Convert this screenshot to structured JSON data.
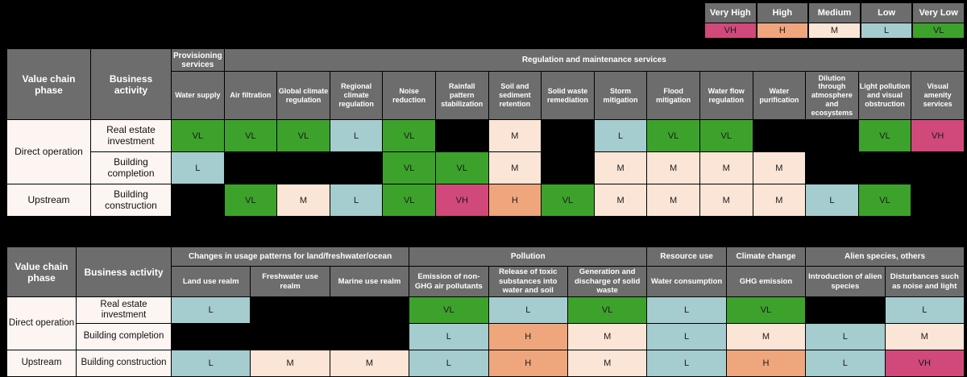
{
  "colors": {
    "VH": "#d1497a",
    "H": "#efa67d",
    "M": "#fbe5d6",
    "L": "#a5cccf",
    "VL": "#3da22c",
    "header_bg": "#6d6d6d",
    "row_label_bg": "#fdf5f2",
    "page_bg": "#000000",
    "header_text": "#ffffff",
    "cell_text": "#1a1a1a"
  },
  "legend": {
    "items": [
      {
        "label": "Very High",
        "code": "VH"
      },
      {
        "label": "High",
        "code": "H"
      },
      {
        "label": "Medium",
        "code": "M"
      },
      {
        "label": "Low",
        "code": "L"
      },
      {
        "label": "Very Low",
        "code": "VL"
      }
    ]
  },
  "chart_data": [
    {
      "type": "heatmap",
      "scale": [
        "VL",
        "L",
        "M",
        "H",
        "VH"
      ],
      "corner_headers": [
        "Value chain phase",
        "Business activity"
      ],
      "column_groups": [
        {
          "label": "Provisioning services",
          "span": 1
        },
        {
          "label": "Regulation and maintenance services",
          "span": 14
        }
      ],
      "columns": [
        "Water supply",
        "Air filtration",
        "Global climate regulation",
        "Regional climate regulation",
        "Noise reduction",
        "Rainfall pattern stabilization",
        "Soil and sediment retention",
        "Solid waste remediation",
        "Storm mitigation",
        "Flood mitigation",
        "Water flow regulation",
        "Water purification",
        "Dilution through atmosphere and ecosystems",
        "Light pollution and visual obstruction",
        "Visual amenity services"
      ],
      "rows": [
        {
          "phase": "Direct operation",
          "phase_span": 2,
          "activity": "Real estate investment",
          "values": [
            "VL",
            "VL",
            "VL",
            "L",
            "VL",
            "",
            "M",
            "",
            "L",
            "VL",
            "VL",
            "",
            "",
            "VL",
            "VH"
          ]
        },
        {
          "phase": "",
          "phase_span": 0,
          "activity": "Building completion",
          "values": [
            "L",
            "",
            "",
            "",
            "VL",
            "VL",
            "M",
            "",
            "M",
            "M",
            "M",
            "M",
            "",
            "",
            ""
          ]
        },
        {
          "phase": "Upstream",
          "phase_span": 1,
          "activity": "Building construction",
          "values": [
            "",
            "VL",
            "M",
            "L",
            "VL",
            "VH",
            "H",
            "VL",
            "M",
            "M",
            "M",
            "M",
            "L",
            "VL",
            ""
          ]
        }
      ]
    },
    {
      "type": "heatmap",
      "scale": [
        "VL",
        "L",
        "M",
        "H",
        "VH"
      ],
      "corner_headers": [
        "Value chain phase",
        "Business activity"
      ],
      "column_groups": [
        {
          "label": "Changes in usage patterns for land/freshwater/ocean",
          "span": 3
        },
        {
          "label": "Pollution",
          "span": 3
        },
        {
          "label": "Resource use",
          "span": 1
        },
        {
          "label": "Climate change",
          "span": 1
        },
        {
          "label": "Alien species, others",
          "span": 2
        }
      ],
      "columns": [
        "Land use realm",
        "Freshwater use realm",
        "Marine use realm",
        "Emission of non-GHG air pollutants",
        "Release of toxic substances into water and soil",
        "Generation and discharge of solid waste",
        "Water consumption",
        "GHG emission",
        "Introduction of alien species",
        "Disturbances such as noise and light"
      ],
      "rows": [
        {
          "phase": "Direct operation",
          "phase_span": 2,
          "activity": "Real estate investment",
          "values": [
            "L",
            "",
            "",
            "VL",
            "L",
            "VL",
            "L",
            "VL",
            "",
            "L"
          ]
        },
        {
          "phase": "",
          "phase_span": 0,
          "activity": "Building completion",
          "values": [
            "",
            "",
            "",
            "L",
            "H",
            "M",
            "L",
            "M",
            "L",
            "M"
          ]
        },
        {
          "phase": "Upstream",
          "phase_span": 1,
          "activity": "Building construction",
          "values": [
            "L",
            "M",
            "M",
            "L",
            "H",
            "M",
            "L",
            "H",
            "L",
            "VH"
          ]
        }
      ]
    }
  ]
}
